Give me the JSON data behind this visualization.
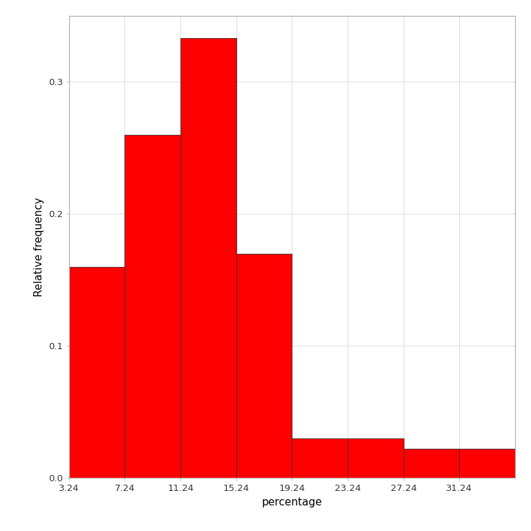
{
  "bin_edges": [
    3.24,
    7.24,
    11.24,
    15.24,
    19.24,
    23.24,
    27.24,
    31.24
  ],
  "rel_freq": [
    0.16,
    0.26,
    0.333,
    0.17,
    0.03,
    0.03,
    0.022,
    0.022
  ],
  "bar_color": "#FF0000",
  "bar_edge_color": "#333333",
  "bar_edge_width": 0.6,
  "xlabel": "percentage",
  "ylabel": "Relative frequency",
  "xlim": [
    3.24,
    35.24
  ],
  "ylim": [
    0.0,
    0.35
  ],
  "yticks": [
    0.0,
    0.1,
    0.2,
    0.3
  ],
  "xticks": [
    3.24,
    7.24,
    11.24,
    15.24,
    19.24,
    23.24,
    27.24,
    31.24
  ],
  "xlabel_fontsize": 11,
  "ylabel_fontsize": 11,
  "tick_fontsize": 9.5,
  "background_color": "#ffffff",
  "panel_background": "#ffffff",
  "grid_color": "#d9d9d9",
  "grid_linewidth": 0.6,
  "spine_color": "#aaaaaa",
  "spine_linewidth": 0.8
}
